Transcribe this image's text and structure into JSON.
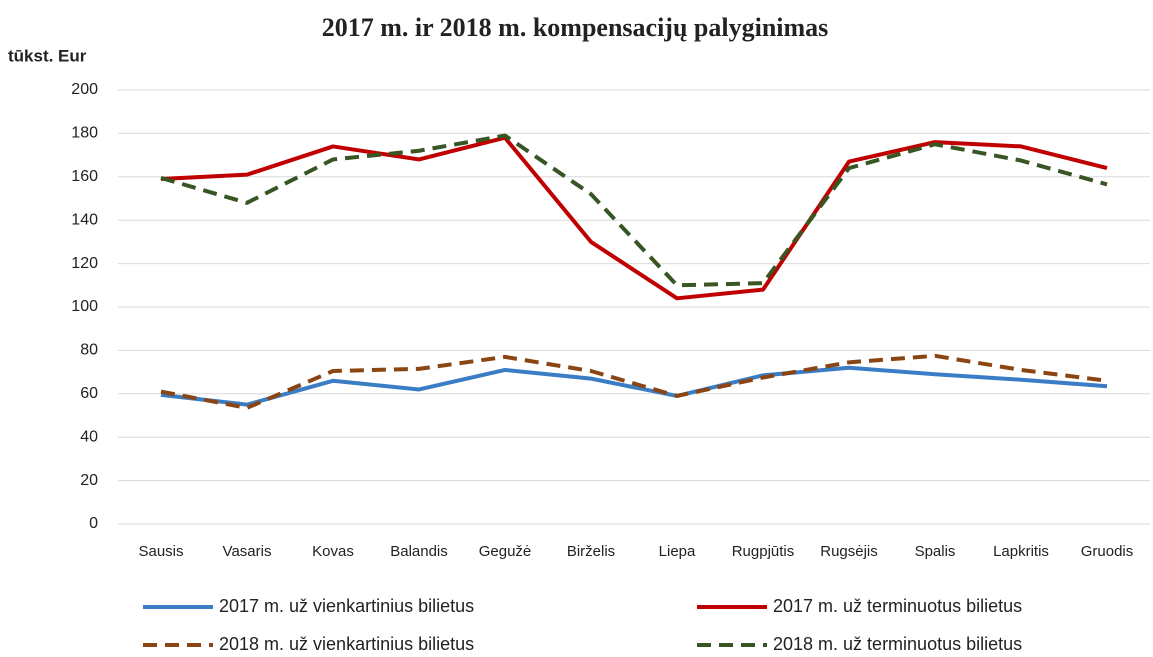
{
  "chart_data": {
    "type": "line",
    "title": "2017 m. ir 2018 m. kompensacijų palyginimas",
    "y_label": "tūkst. Eur",
    "categories": [
      "Sausis",
      "Vasaris",
      "Kovas",
      "Balandis",
      "Gegužė",
      "Birželis",
      "Liepa",
      "Rugpjūtis",
      "Rugsėjis",
      "Spalis",
      "Lapkritis",
      "Gruodis"
    ],
    "series": [
      {
        "name": "2017 m. už vienkartinius bilietus",
        "color": "#3a7dc4",
        "dashed": false,
        "values": [
          59.5,
          55,
          66,
          62,
          71,
          67,
          59,
          68.5,
          72,
          69,
          66.5,
          63.5
        ]
      },
      {
        "name": "2017 m. už terminuotus bilietus",
        "color": "#c00000",
        "dashed": false,
        "values": [
          159,
          161,
          174,
          168,
          178,
          130,
          104,
          108,
          167,
          176,
          174,
          164
        ]
      },
      {
        "name": "2018 m. už vienkartinius bilietus",
        "color": "#8b4513",
        "dashed": true,
        "values": [
          61,
          53.5,
          70.5,
          71.5,
          77,
          70.5,
          59,
          67.5,
          74.5,
          77.5,
          71,
          66
        ]
      },
      {
        "name": "2018 m. už terminuotus bilietus",
        "color": "#375623",
        "dashed": true,
        "values": [
          159.5,
          148,
          168,
          172,
          179,
          152,
          110,
          111,
          164,
          175,
          167.5,
          156.5
        ]
      }
    ],
    "ylim": [
      0,
      200
    ],
    "yticks": [
      0,
      20,
      40,
      60,
      80,
      100,
      120,
      140,
      160,
      180,
      200
    ],
    "grid": true
  }
}
